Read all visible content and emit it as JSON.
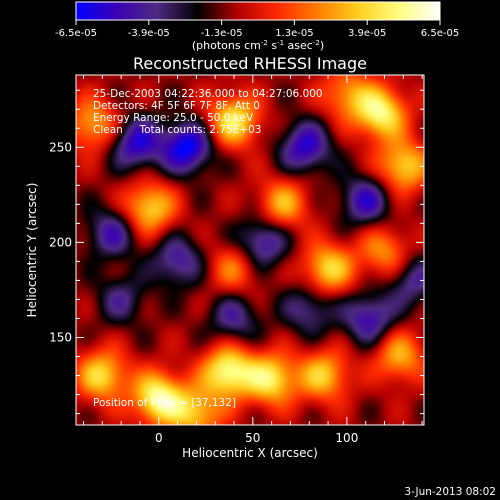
{
  "chart_data": {
    "type": "heatmap",
    "title": "Reconstructed RHESSI Image",
    "xlabel": "Heliocentric X (arcsec)",
    "ylabel": "Heliocentric Y (arcsec)",
    "xlim": [
      -44,
      141
    ],
    "ylim": [
      104,
      288
    ],
    "x_ticks": [
      0,
      50,
      100
    ],
    "y_ticks": [
      150,
      200,
      250
    ],
    "colorbar": {
      "ticks": [
        "-6.5e-05",
        "-3.9e-05",
        "-1.3e-05",
        "1.3e-05",
        "3.9e-05",
        "6.5e-05"
      ],
      "range": [
        -6.5e-05,
        6.5e-05
      ],
      "unit_label": "(photons cm",
      "unit_exp1": "-2",
      "unit_mid": " s",
      "unit_exp2": "-1",
      "unit_tail": " asec",
      "unit_exp3": "-2",
      "unit_close": ")",
      "colors": [
        "#0000ff",
        "#3a00b4",
        "#4e2a82",
        "#000000",
        "#b40000",
        "#ff2a00",
        "#ff8000",
        "#ffd020",
        "#ffff80",
        "#ffffff"
      ]
    },
    "annotations": [
      "25-Dec-2003 04:22:36.000 to 04:27:06.000",
      "Detectors: 4F 5F 6F 7F 8F, Att 0",
      "Energy Range: 25.0 - 50.0 keV",
      "Clean     Total counts: 2.75E+03"
    ],
    "peak_label": "Position of Peak = [37,132]",
    "peak": [
      37,
      132
    ],
    "sources": [
      {
        "x": 0,
        "y": 118,
        "v": 6.5e-05
      },
      {
        "x": 37,
        "y": 132,
        "v": 6.5e-05
      },
      {
        "x": -30,
        "y": 130,
        "v": 5e-05
      },
      {
        "x": 60,
        "y": 128,
        "v": 5.5e-05
      },
      {
        "x": 88,
        "y": 130,
        "v": 4.5e-05
      },
      {
        "x": 128,
        "y": 140,
        "v": 4e-05
      },
      {
        "x": 20,
        "y": 110,
        "v": 4.5e-05
      },
      {
        "x": 118,
        "y": 268,
        "v": 6e-05
      },
      {
        "x": 130,
        "y": 240,
        "v": 5e-05
      },
      {
        "x": 40,
        "y": 264,
        "v": 5.5e-05
      },
      {
        "x": -5,
        "y": 218,
        "v": 5e-05
      },
      {
        "x": 66,
        "y": 220,
        "v": 4e-05
      },
      {
        "x": 90,
        "y": 186,
        "v": 5e-05
      },
      {
        "x": -35,
        "y": 262,
        "v": 4e-05
      },
      {
        "x": 100,
        "y": 278,
        "v": 3.5e-05
      },
      {
        "x": 40,
        "y": 186,
        "v": 3e-05
      },
      {
        "x": 120,
        "y": 195,
        "v": 3.5e-05
      },
      {
        "x": 15,
        "y": 250,
        "v": -5.5e-05
      },
      {
        "x": -12,
        "y": 252,
        "v": -4.5e-05
      },
      {
        "x": 78,
        "y": 250,
        "v": -4.5e-05
      },
      {
        "x": 55,
        "y": 200,
        "v": -4e-05
      },
      {
        "x": 10,
        "y": 190,
        "v": -3.5e-05
      },
      {
        "x": 110,
        "y": 222,
        "v": -4e-05
      },
      {
        "x": 112,
        "y": 160,
        "v": -4e-05
      },
      {
        "x": -25,
        "y": 205,
        "v": -3.5e-05
      },
      {
        "x": 40,
        "y": 160,
        "v": -3e-05
      },
      {
        "x": 80,
        "y": 165,
        "v": -3e-05
      },
      {
        "x": -20,
        "y": 170,
        "v": -2.5e-05
      },
      {
        "x": 135,
        "y": 180,
        "v": -3e-05
      }
    ]
  },
  "footer": {
    "date": "3-Jun-2013 08:02"
  }
}
